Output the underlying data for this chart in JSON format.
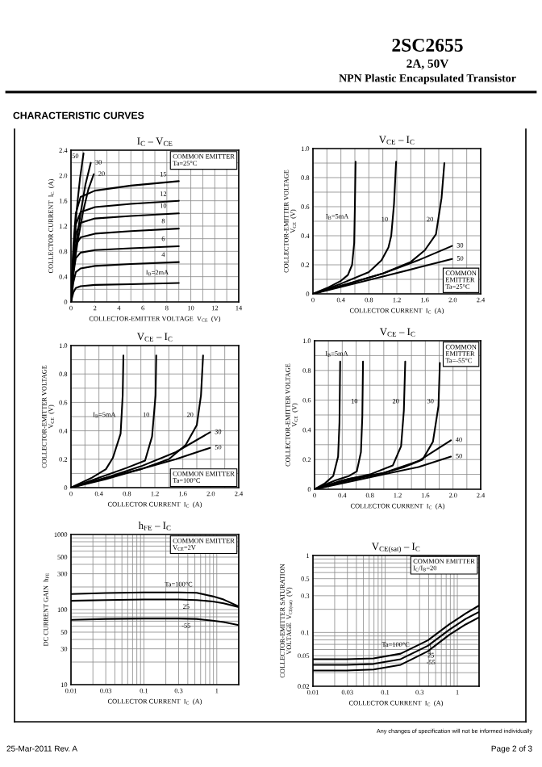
{
  "chart_data": [
    {
      "type": "other",
      "title": "2SC2655",
      "subtitle": "2A, 50V",
      "annotations": [
        "NPN Plastic Encapsulated Transistor",
        "CHARACTERISTIC CURVES"
      ]
    },
    {
      "type": "line",
      "title": "I$_{C}$ – V$_{CE}$",
      "xlabel": "COLLECTOR-EMITTER VOLTAGE  V$_{CE}$  (V)",
      "ylabel": "COLLECTOR CURRENT  I$_{C}$  (A)",
      "xlim": [
        0,
        14
      ],
      "ylim": [
        0,
        2.4
      ],
      "xticks": [
        0,
        {
          "value": 1,
          "label": null
        },
        2,
        {
          "value": 3,
          "label": null
        },
        4,
        {
          "value": 5,
          "label": null
        },
        6,
        {
          "value": 7,
          "label": null
        },
        8,
        {
          "value": 9,
          "label": null
        },
        10,
        {
          "value": 11,
          "label": null
        },
        12,
        {
          "value": 13,
          "label": null
        },
        14
      ],
      "yticks": [
        0,
        {
          "value": 0.2,
          "label": null
        },
        0.4,
        {
          "value": 0.6,
          "label": null
        },
        0.8,
        {
          "value": 1.0,
          "label": null
        },
        1.2,
        {
          "value": 1.4,
          "label": null
        },
        1.6,
        {
          "value": 1.8,
          "label": null
        },
        {
          "value": 2,
          "label": "2.0"
        },
        {
          "value": 2.2,
          "label": null
        },
        2.4
      ],
      "grid": true,
      "series": [
        {
          "color": "#000000",
          "x": [
            0,
            0.15,
            0.3,
            0.5,
            0.75,
            1.05
          ],
          "values": [
            0,
            0.5,
            1.0,
            1.5,
            1.95,
            2.35
          ]
        },
        {
          "color": "#000000",
          "x": [
            0,
            0.2,
            0.45,
            0.8,
            1.2,
            1.65
          ],
          "values": [
            0,
            0.5,
            0.95,
            1.4,
            1.85,
            2.2
          ]
        },
        {
          "color": "#000000",
          "x": [
            0,
            0.25,
            0.55,
            1.0,
            1.45,
            1.9
          ],
          "values": [
            0,
            0.55,
            0.95,
            1.42,
            1.78,
            2.02
          ]
        },
        {
          "color": "#000000",
          "x": [
            0,
            0.2,
            0.4,
            0.8,
            2,
            5,
            9
          ],
          "values": [
            0,
            0.9,
            1.4,
            1.66,
            1.76,
            1.84,
            1.91
          ]
        },
        {
          "color": "#000000",
          "x": [
            0,
            0.2,
            0.4,
            0.8,
            2,
            5,
            9
          ],
          "values": [
            0,
            0.8,
            1.22,
            1.42,
            1.5,
            1.55,
            1.6
          ]
        },
        {
          "color": "#000000",
          "x": [
            0,
            0.2,
            0.4,
            0.8,
            2,
            5,
            9
          ],
          "values": [
            0,
            0.7,
            1.08,
            1.25,
            1.32,
            1.36,
            1.4
          ]
        },
        {
          "color": "#000000",
          "x": [
            0,
            0.2,
            0.4,
            0.8,
            2,
            5,
            9
          ],
          "values": [
            0,
            0.58,
            0.9,
            1.02,
            1.08,
            1.12,
            1.16
          ]
        },
        {
          "color": "#000000",
          "x": [
            0,
            0.2,
            0.4,
            0.8,
            2,
            5,
            9
          ],
          "values": [
            0,
            0.45,
            0.69,
            0.78,
            0.82,
            0.85,
            0.88
          ]
        },
        {
          "color": "#000000",
          "x": [
            0,
            0.2,
            0.4,
            0.8,
            2,
            5,
            9
          ],
          "values": [
            0,
            0.31,
            0.47,
            0.53,
            0.57,
            0.6,
            0.63
          ]
        },
        {
          "color": "#000000",
          "x": [
            0,
            0.2,
            0.4,
            0.8,
            2,
            5,
            9
          ],
          "values": [
            0,
            0.15,
            0.22,
            0.25,
            0.27,
            0.28,
            0.3
          ]
        }
      ],
      "annotations": [
        "COMMON EMITTER\nTa=25°C",
        {
          "text": "50",
          "x": 0.75,
          "y": 2.3
        },
        {
          "text": "30",
          "x": 1.92,
          "y": 2.2
        },
        {
          "text": "20",
          "x": 2.17,
          "y": 2.02
        },
        {
          "text": "15",
          "x": 7.7,
          "y": 1.94
        },
        {
          "text": "12",
          "x": 7.7,
          "y": 1.63
        },
        {
          "text": "10",
          "x": 7.7,
          "y": 1.44
        },
        {
          "text": "8",
          "x": 7.7,
          "y": 1.2
        },
        {
          "text": "6",
          "x": 7.7,
          "y": 0.92
        },
        {
          "text": "4",
          "x": 7.7,
          "y": 0.67
        },
        {
          "text": "I$_{B}$=2mA",
          "x": 7.2,
          "y": 0.34
        }
      ]
    },
    {
      "type": "line",
      "title": "V$_{CE}$ – I$_{C}$",
      "xlabel": "COLLECTOR CURRENT  I$_{C}$  (A)",
      "ylabel": "COLLECTOR-EMITTER VOLTAGE\nV$_{CE}$  (V)",
      "xlim": [
        0,
        2.4
      ],
      "ylim": [
        0,
        1.0
      ],
      "xticks": [
        0,
        {
          "value": 0.2,
          "label": null
        },
        0.4,
        {
          "value": 0.6,
          "label": null
        },
        0.8,
        {
          "value": 1.0,
          "label": null
        },
        1.2,
        {
          "value": 1.4,
          "label": null
        },
        1.6,
        {
          "value": 1.8,
          "label": null
        },
        {
          "value": 2,
          "label": "2.0"
        },
        {
          "value": 2.2,
          "label": null
        },
        2.4
      ],
      "yticks": [
        0,
        {
          "value": 0.1,
          "label": null
        },
        0.2,
        {
          "value": 0.3,
          "label": null
        },
        0.4,
        {
          "value": 0.5,
          "label": null
        },
        0.6,
        {
          "value": 0.7,
          "label": null
        },
        0.8,
        {
          "value": 0.9,
          "label": null
        },
        {
          "value": 1,
          "label": "1.0"
        }
      ],
      "grid": true,
      "series": [
        {
          "color": "#000000",
          "x": [
            0,
            0.2,
            0.4,
            0.5,
            0.56,
            0.59,
            0.6,
            0.61
          ],
          "values": [
            0,
            0.04,
            0.09,
            0.13,
            0.2,
            0.35,
            0.6,
            0.91
          ]
        },
        {
          "color": "#000000",
          "x": [
            0,
            0.4,
            0.8,
            0.98,
            1.08,
            1.12,
            1.16,
            1.19
          ],
          "values": [
            0,
            0.07,
            0.15,
            0.23,
            0.32,
            0.4,
            0.62,
            0.91
          ]
        },
        {
          "color": "#000000",
          "x": [
            0,
            0.5,
            1.0,
            1.4,
            1.6,
            1.76,
            1.84,
            1.88
          ],
          "values": [
            0,
            0.07,
            0.14,
            0.22,
            0.3,
            0.41,
            0.66,
            0.9
          ]
        },
        {
          "color": "#000000",
          "x": [
            0,
            0.5,
            1.0,
            1.5,
            1.99
          ],
          "values": [
            0,
            0.07,
            0.14,
            0.23,
            0.33
          ]
        },
        {
          "color": "#000000",
          "x": [
            0,
            0.5,
            1.0,
            1.5,
            1.99
          ],
          "values": [
            0,
            0.06,
            0.12,
            0.18,
            0.24
          ]
        }
      ],
      "annotations": [
        "COMMON\nEMITTER\nTa=25°C",
        {
          "text": "I$_{B}$=5mA",
          "x": 0.55,
          "y": 0.53
        },
        {
          "text": "10",
          "x": 1.09,
          "y": 0.51
        },
        {
          "text": "20",
          "x": 1.74,
          "y": 0.51
        },
        {
          "text": "30",
          "x": 2.04,
          "y": 0.33
        },
        {
          "text": "50",
          "x": 2.04,
          "y": 0.24
        }
      ]
    },
    {
      "type": "line",
      "title": "V$_{CE}$ – I$_{C}$",
      "xlabel": "COLLECTOR CURRENT  I$_{C}$  (A)",
      "ylabel": "COLLECTOR-EMITTER VOLTAGE\nV$_{CE}$  (V)",
      "xlim": [
        0,
        2.4
      ],
      "ylim": [
        0,
        1.0
      ],
      "xticks": [
        0,
        {
          "value": 0.2,
          "label": null
        },
        0.4,
        {
          "value": 0.6,
          "label": null
        },
        0.8,
        {
          "value": 1.0,
          "label": null
        },
        1.2,
        {
          "value": 1.4,
          "label": null
        },
        1.6,
        {
          "value": 1.8,
          "label": null
        },
        {
          "value": 2,
          "label": "2.0"
        },
        {
          "value": 2.2,
          "label": null
        },
        2.4
      ],
      "yticks": [
        0,
        {
          "value": 0.1,
          "label": null
        },
        0.2,
        {
          "value": 0.3,
          "label": null
        },
        0.4,
        {
          "value": 0.5,
          "label": null
        },
        0.6,
        {
          "value": 0.7,
          "label": null
        },
        0.8,
        {
          "value": 0.9,
          "label": null
        },
        {
          "value": 1,
          "label": "1.0"
        }
      ],
      "grid": true,
      "series": [
        {
          "color": "#000000",
          "x": [
            0,
            0.3,
            0.5,
            0.6,
            0.71,
            0.74,
            0.75
          ],
          "values": [
            0,
            0.07,
            0.13,
            0.21,
            0.38,
            0.65,
            0.93
          ]
        },
        {
          "color": "#000000",
          "x": [
            0,
            0.4,
            0.8,
            1.06,
            1.16,
            1.21,
            1.22
          ],
          "values": [
            0,
            0.07,
            0.14,
            0.19,
            0.36,
            0.65,
            0.93
          ]
        },
        {
          "color": "#000000",
          "x": [
            0,
            0.5,
            1.0,
            1.4,
            1.64,
            1.8,
            1.86,
            1.89
          ],
          "values": [
            0,
            0.07,
            0.13,
            0.2,
            0.3,
            0.44,
            0.65,
            0.93
          ]
        },
        {
          "color": "#000000",
          "x": [
            0,
            0.5,
            1.0,
            1.5,
            1.99
          ],
          "values": [
            0,
            0.07,
            0.15,
            0.25,
            0.39
          ]
        },
        {
          "color": "#000000",
          "x": [
            0,
            0.5,
            1.0,
            1.5,
            1.99
          ],
          "values": [
            0,
            0.06,
            0.13,
            0.2,
            0.28
          ]
        }
      ],
      "annotations": [
        "COMMON EMITTER\nTa=100°C",
        {
          "text": "I$_{B}$=5mA",
          "x": 0.68,
          "y": 0.51
        },
        {
          "text": "10",
          "x": 1.14,
          "y": 0.51
        },
        {
          "text": "20",
          "x": 1.77,
          "y": 0.51
        },
        {
          "text": "30",
          "x": 2.04,
          "y": 0.39
        },
        {
          "text": "50",
          "x": 2.04,
          "y": 0.28
        }
      ]
    },
    {
      "type": "line",
      "title": "V$_{CE}$ – I$_{C}$",
      "xlabel": "COLLECTOR CURRENT  I$_{C}$  (A)",
      "ylabel": "COLLECTOR-EMITTER VOLTAGE\nV$_{CE}$  (V)",
      "xlim": [
        0,
        2.4
      ],
      "ylim": [
        0,
        1.0
      ],
      "xticks": [
        0,
        {
          "value": 0.2,
          "label": null
        },
        0.4,
        {
          "value": 0.6,
          "label": null
        },
        0.8,
        {
          "value": 1.0,
          "label": null
        },
        1.2,
        {
          "value": 1.4,
          "label": null
        },
        1.6,
        {
          "value": 1.8,
          "label": null
        },
        {
          "value": 2,
          "label": "2.0"
        },
        {
          "value": 2.2,
          "label": null
        },
        2.4
      ],
      "yticks": [
        0,
        {
          "value": 0.1,
          "label": null
        },
        0.2,
        {
          "value": 0.3,
          "label": null
        },
        0.4,
        {
          "value": 0.5,
          "label": null
        },
        0.6,
        {
          "value": 0.7,
          "label": null
        },
        0.8,
        {
          "value": 0.9,
          "label": null
        },
        {
          "value": 1,
          "label": "1.0"
        }
      ],
      "grid": true,
      "series": [
        {
          "color": "#000000",
          "x": [
            0,
            0.15,
            0.27,
            0.34,
            0.36,
            0.37
          ],
          "values": [
            0,
            0.04,
            0.09,
            0.22,
            0.45,
            0.86
          ]
        },
        {
          "color": "#000000",
          "x": [
            0,
            0.3,
            0.5,
            0.61,
            0.67,
            0.69,
            0.7
          ],
          "values": [
            0,
            0.06,
            0.09,
            0.12,
            0.25,
            0.49,
            0.86
          ]
        },
        {
          "color": "#000000",
          "x": [
            0,
            0.4,
            0.8,
            1.13,
            1.25,
            1.29,
            1.31
          ],
          "values": [
            0,
            0.06,
            0.1,
            0.16,
            0.29,
            0.53,
            0.86
          ]
        },
        {
          "color": "#000000",
          "x": [
            0,
            0.5,
            1.0,
            1.3,
            1.56,
            1.71,
            1.79,
            1.81
          ],
          "values": [
            0,
            0.07,
            0.11,
            0.15,
            0.2,
            0.32,
            0.56,
            0.85
          ]
        },
        {
          "color": "#000000",
          "x": [
            0,
            0.5,
            1.0,
            1.5,
            1.97
          ],
          "values": [
            0,
            0.06,
            0.11,
            0.19,
            0.33
          ]
        },
        {
          "color": "#000000",
          "x": [
            0,
            0.5,
            1.0,
            1.5,
            1.97
          ],
          "values": [
            0,
            0.05,
            0.1,
            0.15,
            0.22
          ]
        }
      ],
      "annotations": [
        "COMMON\nEMITTER\nTa=-55°C",
        {
          "text": "I$_{B}$=5mA",
          "x": 0.32,
          "y": 0.86
        },
        {
          "text": "10",
          "x": 0.64,
          "y": 0.59
        },
        {
          "text": "20",
          "x": 1.24,
          "y": 0.59
        },
        {
          "text": "30",
          "x": 1.74,
          "y": 0.59
        },
        {
          "text": "40",
          "x": 2.02,
          "y": 0.33
        },
        {
          "text": "50",
          "x": 2.02,
          "y": 0.22
        }
      ]
    },
    {
      "type": "line",
      "log": "xy",
      "title": "h$_{FE}$ – I$_{C}$",
      "xlabel": "COLLECTOR CURRENT  I$_{C}$  (A)",
      "ylabel": "DC CURRENT GAIN  h$_{FE}$",
      "xlim": [
        0.01,
        2
      ],
      "ylim": [
        10,
        1000
      ],
      "xticks": [
        0.01,
        {
          "value": 0.02,
          "label": null
        },
        0.03,
        {
          "value": 0.04,
          "label": null
        },
        {
          "value": 0.05,
          "label": null
        },
        {
          "value": 0.06,
          "label": null
        },
        {
          "value": 0.07,
          "label": null
        },
        {
          "value": 0.08,
          "label": null
        },
        {
          "value": 0.09,
          "label": null
        },
        0.1,
        {
          "value": 0.2,
          "label": null
        },
        0.3,
        {
          "value": 0.4,
          "label": null
        },
        {
          "value": 0.5,
          "label": null
        },
        {
          "value": 0.6,
          "label": null
        },
        {
          "value": 0.7,
          "label": null
        },
        {
          "value": 0.8,
          "label": null
        },
        {
          "value": 0.9,
          "label": null
        },
        1,
        {
          "value": 2,
          "label": null
        }
      ],
      "yticks": [
        10,
        {
          "value": 20,
          "label": null
        },
        30,
        {
          "value": 40,
          "label": null
        },
        50,
        {
          "value": 60,
          "label": null
        },
        {
          "value": 70,
          "label": null
        },
        {
          "value": 80,
          "label": null
        },
        {
          "value": 90,
          "label": null
        },
        100,
        {
          "value": 200,
          "label": null
        },
        300,
        {
          "value": 400,
          "label": null
        },
        500,
        {
          "value": 600,
          "label": null
        },
        {
          "value": 700,
          "label": null
        },
        {
          "value": 800,
          "label": null
        },
        {
          "value": 900,
          "label": null
        },
        1000
      ],
      "grid": true,
      "series": [
        {
          "color": "#000000",
          "x": [
            0.01,
            0.03,
            0.1,
            0.3,
            0.53,
            0.88,
            1.24,
            2
          ],
          "values": [
            161,
            166,
            169,
            169,
            167,
            150,
            136,
            110
          ]
        },
        {
          "color": "#000000",
          "x": [
            0.01,
            0.03,
            0.1,
            0.3,
            0.53,
            0.88,
            1.24,
            2
          ],
          "values": [
            131,
            134,
            136,
            136,
            134,
            128,
            121,
            108
          ]
        },
        {
          "color": "#000000",
          "x": [
            0.01,
            0.03,
            0.1,
            0.3,
            0.53,
            0.88,
            1.24,
            2
          ],
          "values": [
            73,
            75,
            76,
            76,
            75,
            71,
            68,
            62
          ]
        }
      ],
      "annotations": [
        "COMMON EMITTER\nV$_{CE}$=2V",
        {
          "text": "Ta=100°C",
          "x": 0.3,
          "y": 186
        },
        {
          "text": "25",
          "x": 0.38,
          "y": 124
        },
        {
          "text": "-55",
          "x": 0.38,
          "y": 69
        }
      ]
    },
    {
      "type": "line",
      "log": "xy",
      "title": "V$_{CE(sat)}$ – I$_{C}$",
      "xlabel": "COLLECTOR CURRENT  I$_{C}$  (A)",
      "ylabel": "COLLECTOR-EMITTER SATURATION\nVOLTAGE  V$_{CE(sat)}$  (V)",
      "xlim": [
        0.01,
        2
      ],
      "ylim": [
        0.02,
        1
      ],
      "xticks": [
        0.01,
        {
          "value": 0.02,
          "label": null
        },
        0.03,
        {
          "value": 0.04,
          "label": null
        },
        {
          "value": 0.05,
          "label": null
        },
        {
          "value": 0.06,
          "label": null
        },
        {
          "value": 0.07,
          "label": null
        },
        {
          "value": 0.08,
          "label": null
        },
        {
          "value": 0.09,
          "label": null
        },
        0.1,
        {
          "value": 0.2,
          "label": null
        },
        0.3,
        {
          "value": 0.4,
          "label": null
        },
        {
          "value": 0.5,
          "label": null
        },
        {
          "value": 0.6,
          "label": null
        },
        {
          "value": 0.7,
          "label": null
        },
        {
          "value": 0.8,
          "label": null
        },
        {
          "value": 0.9,
          "label": null
        },
        1,
        {
          "value": 2,
          "label": null
        }
      ],
      "yticks": [
        0.02,
        {
          "value": 0.03,
          "label": null
        },
        {
          "value": 0.04,
          "label": null
        },
        0.05,
        {
          "value": 0.06,
          "label": null
        },
        {
          "value": 0.07,
          "label": null
        },
        {
          "value": 0.08,
          "label": null
        },
        {
          "value": 0.09,
          "label": null
        },
        0.1,
        {
          "value": 0.2,
          "label": null
        },
        0.3,
        {
          "value": 0.4,
          "label": null
        },
        0.5,
        {
          "value": 0.6,
          "label": null
        },
        {
          "value": 0.7,
          "label": null
        },
        {
          "value": 0.8,
          "label": null
        },
        {
          "value": 0.9,
          "label": null
        },
        1
      ],
      "grid": true,
      "series": [
        {
          "color": "#000000",
          "x": [
            0.01,
            0.029,
            0.069,
            0.164,
            0.39,
            0.77,
            1.3,
            2
          ],
          "values": [
            0.045,
            0.045,
            0.046,
            0.053,
            0.079,
            0.127,
            0.176,
            0.224
          ]
        },
        {
          "color": "#000000",
          "x": [
            0.01,
            0.029,
            0.069,
            0.164,
            0.39,
            0.77,
            1.3,
            2
          ],
          "values": [
            0.038,
            0.038,
            0.039,
            0.045,
            0.067,
            0.108,
            0.15,
            0.185
          ]
        },
        {
          "color": "#000000",
          "x": [
            0.01,
            0.029,
            0.069,
            0.164,
            0.39,
            0.77,
            1.3,
            2
          ],
          "values": [
            0.032,
            0.032,
            0.033,
            0.038,
            0.057,
            0.093,
            0.127,
            0.157
          ]
        }
      ],
      "annotations": [
        "COMMON EMITTER\nI$_{C}$/I$_{B}$=20",
        {
          "text": "Ta=100°C",
          "x": 0.14,
          "y": 0.057
        },
        {
          "text": "25",
          "x": 0.43,
          "y": 0.069
        },
        {
          "text": "-55",
          "x": 0.43,
          "y": 0.056
        }
      ]
    },
    {
      "type": "other",
      "annotations": [
        "Any changes of specification will not be informed individually",
        "25-Mar-2011 Rev. A",
        "Page 2 of 3"
      ]
    }
  ]
}
